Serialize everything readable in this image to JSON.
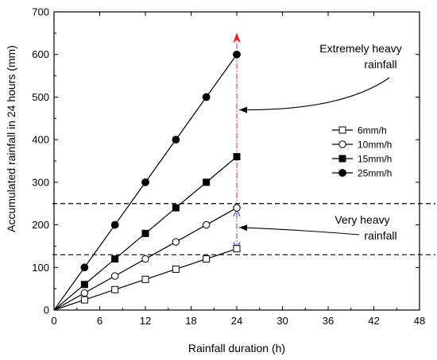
{
  "chart_data": {
    "type": "line",
    "title": "",
    "xlabel": "Rainfall duration (h)",
    "ylabel": "Accumulated rainfall in 24 hours (mm)",
    "xlim": [
      0,
      48
    ],
    "ylim": [
      0,
      700
    ],
    "xticks": [
      0,
      6,
      12,
      18,
      24,
      30,
      36,
      42,
      48
    ],
    "yticks": [
      0,
      100,
      200,
      300,
      400,
      500,
      600,
      700
    ],
    "grid": false,
    "legend_position": "right",
    "series": [
      {
        "name": "6mm/h",
        "marker": "open-square",
        "x": [
          0,
          4,
          8,
          12,
          16,
          20,
          24
        ],
        "values": [
          0,
          24,
          48,
          72,
          96,
          120,
          144
        ]
      },
      {
        "name": "10mm/h",
        "marker": "open-circle",
        "x": [
          0,
          4,
          8,
          12,
          16,
          20,
          24
        ],
        "values": [
          0,
          40,
          80,
          120,
          160,
          200,
          240
        ]
      },
      {
        "name": "15mm/h",
        "marker": "filled-square",
        "x": [
          0,
          4,
          8,
          12,
          16,
          20,
          24
        ],
        "values": [
          0,
          60,
          120,
          180,
          240,
          300,
          360
        ]
      },
      {
        "name": "25mm/h",
        "marker": "filled-circle",
        "x": [
          0,
          4,
          8,
          12,
          16,
          20,
          24
        ],
        "values": [
          0,
          100,
          200,
          300,
          400,
          500,
          600
        ]
      }
    ],
    "threshold_lines": [
      130,
      250
    ],
    "annotations": [
      {
        "text_lines": [
          "Extremely heavy",
          "rainfall"
        ],
        "arrow_target": {
          "x": 24,
          "y": 470
        }
      },
      {
        "text_lines": [
          "Very heavy",
          "rainfall"
        ],
        "arrow_target": {
          "x": 24,
          "y": 194
        }
      }
    ],
    "range_arrows": [
      {
        "color": "#e8262b",
        "x": 24,
        "y_from": 240,
        "y_to": 640
      },
      {
        "color": "#3b4fd6",
        "x": 24,
        "y_from": 144,
        "y_to": 235
      }
    ]
  }
}
